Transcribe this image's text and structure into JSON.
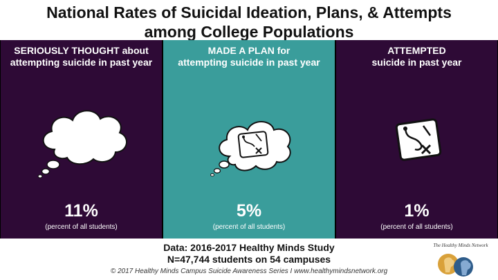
{
  "title": {
    "line1": "National Rates of Suicidal Ideation, Plans, & Attempts",
    "line2": "among College Populations"
  },
  "panels": [
    {
      "heading_line1": "SERIOUSLY THOUGHT about",
      "heading_line2": "attempting suicide in past year",
      "value": "11%",
      "note": "(percent of all students)",
      "icon": "thought-cloud-icon",
      "color": "#2e0a36"
    },
    {
      "heading_line1": "MADE A PLAN for",
      "heading_line2": "attempting suicide in past year",
      "value": "5%",
      "note": "(percent of all students)",
      "icon": "plan-cloud-icon",
      "color": "#3a9d9b"
    },
    {
      "heading_line1": "ATTEMPTED",
      "heading_line2": "suicide in past year",
      "value": "1%",
      "note": "(percent of all students)",
      "icon": "plan-diagram-icon",
      "color": "#2e0a36"
    }
  ],
  "footer": {
    "source_line1": "Data: 2016-2017 Healthy Minds Study",
    "source_line2": "N=47,744 students on 54 campuses",
    "credit": "© 2017 Healthy Minds Campus Suicide Awareness Series  I  www.healthymindsnetwork.org"
  },
  "logo": {
    "text": "The Healthy Minds Network",
    "icon": "healthy-minds-logo-icon"
  }
}
